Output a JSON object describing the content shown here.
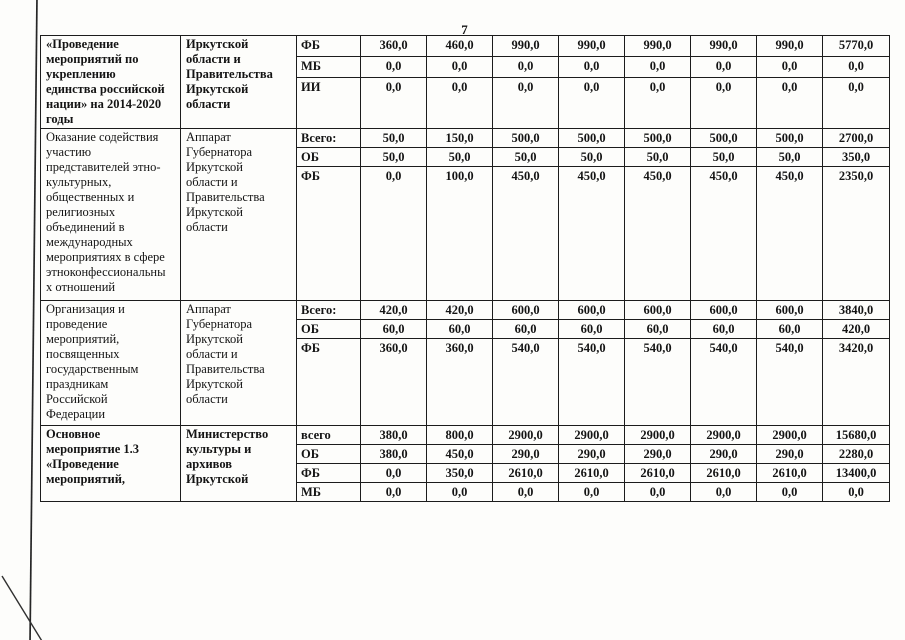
{
  "page": {
    "number": "7"
  },
  "table": {
    "blocks": [
      {
        "program": "«Проведение\nмероприятий по\nукреплению\nединства российской\nнации» на 2014-2020\nгоды",
        "executor": "Иркутской\nобласти и\nПравительства\nИркутской\nобласти",
        "emphasis": true,
        "rows": [
          {
            "source": "ФБ",
            "values": [
              "360,0",
              "460,0",
              "990,0",
              "990,0",
              "990,0",
              "990,0",
              "990,0",
              "5770,0"
            ]
          },
          {
            "source": "МБ",
            "values": [
              "0,0",
              "0,0",
              "0,0",
              "0,0",
              "0,0",
              "0,0",
              "0,0",
              "0,0"
            ]
          },
          {
            "source": "ИИ",
            "values": [
              "0,0",
              "0,0",
              "0,0",
              "0,0",
              "0,0",
              "0,0",
              "0,0",
              "0,0"
            ]
          }
        ]
      },
      {
        "program": "Оказание содействия\nучастию\nпредставителей этно-\nкультурных,\nобщественных и\nрелигиозных\nобъединений в\nмеждународных\nмероприятиях в сфере\nэтноконфессиональны\nх отношений",
        "executor": "Аппарат\nГубернатора\nИркутской\nобласти и\nПравительства\nИркутской\nобласти",
        "emphasis": false,
        "rows": [
          {
            "source": "Всего:",
            "values": [
              "50,0",
              "150,0",
              "500,0",
              "500,0",
              "500,0",
              "500,0",
              "500,0",
              "2700,0"
            ]
          },
          {
            "source": "ОБ",
            "values": [
              "50,0",
              "50,0",
              "50,0",
              "50,0",
              "50,0",
              "50,0",
              "50,0",
              "350,0"
            ]
          },
          {
            "source": "ФБ",
            "values": [
              "0,0",
              "100,0",
              "450,0",
              "450,0",
              "450,0",
              "450,0",
              "450,0",
              "2350,0"
            ]
          }
        ]
      },
      {
        "program": "Организация и\nпроведение\nмероприятий,\nпосвященных\nгосударственным\nпраздникам\nРоссийской\nФедерации",
        "executor": "Аппарат\nГубернатора\nИркутской\nобласти и\nПравительства\nИркутской\nобласти",
        "emphasis": false,
        "rows": [
          {
            "source": "Всего:",
            "values": [
              "420,0",
              "420,0",
              "600,0",
              "600,0",
              "600,0",
              "600,0",
              "600,0",
              "3840,0"
            ]
          },
          {
            "source": "ОБ",
            "values": [
              "60,0",
              "60,0",
              "60,0",
              "60,0",
              "60,0",
              "60,0",
              "60,0",
              "420,0"
            ]
          },
          {
            "source": "ФБ",
            "values": [
              "360,0",
              "360,0",
              "540,0",
              "540,0",
              "540,0",
              "540,0",
              "540,0",
              "3420,0"
            ]
          }
        ]
      },
      {
        "program": "Основное\nмероприятие 1.3\n«Проведение\nмероприятий,",
        "executor": "Министерство\nкультуры и\nархивов\nИркутской",
        "emphasis": true,
        "rows": [
          {
            "source": "всего",
            "values": [
              "380,0",
              "800,0",
              "2900,0",
              "2900,0",
              "2900,0",
              "2900,0",
              "2900,0",
              "15680,0"
            ]
          },
          {
            "source": "ОБ",
            "values": [
              "380,0",
              "450,0",
              "290,0",
              "290,0",
              "290,0",
              "290,0",
              "290,0",
              "2280,0"
            ]
          },
          {
            "source": "ФБ",
            "values": [
              "0,0",
              "350,0",
              "2610,0",
              "2610,0",
              "2610,0",
              "2610,0",
              "2610,0",
              "13400,0"
            ]
          },
          {
            "source": "МБ",
            "values": [
              "0,0",
              "0,0",
              "0,0",
              "0,0",
              "0,0",
              "0,0",
              "0,0",
              "0,0"
            ]
          }
        ]
      }
    ]
  }
}
